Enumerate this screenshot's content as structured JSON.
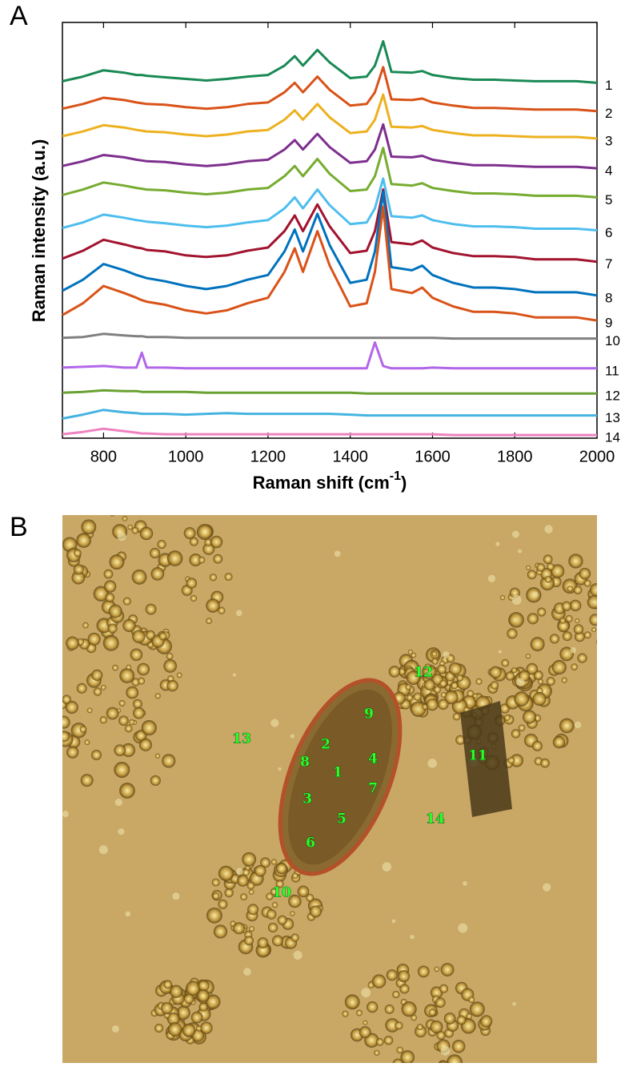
{
  "chart_data": {
    "type": "line",
    "panel_label": "A",
    "y_label": "Raman intensity (a.u.)",
    "x_label": [
      "Raman shift (cm",
      "-1",
      ")"
    ],
    "xlim": [
      700,
      2000
    ],
    "xticks": [
      800,
      1000,
      1200,
      1400,
      1600,
      1800,
      2000
    ],
    "ylim": [
      0,
      530
    ],
    "x": [
      700,
      750,
      800,
      850,
      880,
      893,
      905,
      950,
      1000,
      1050,
      1100,
      1150,
      1200,
      1240,
      1265,
      1285,
      1320,
      1350,
      1400,
      1440,
      1460,
      1480,
      1500,
      1550,
      1575,
      1600,
      1650,
      1700,
      1750,
      1800,
      1850,
      1900,
      1950,
      2000
    ],
    "series": [
      {
        "name": "1",
        "color": "#1a8a55",
        "values": [
          455,
          461,
          469,
          466,
          463,
          463,
          462,
          460,
          458,
          456,
          458,
          461,
          463,
          475,
          487,
          475,
          495,
          479,
          459,
          461,
          475,
          506,
          467,
          466,
          468,
          463,
          459,
          457,
          457,
          456,
          455,
          455,
          455,
          453
        ]
      },
      {
        "name": "2",
        "color": "#d95319",
        "values": [
          420,
          426,
          434,
          431,
          428,
          427,
          426,
          425,
          422,
          420,
          422,
          426,
          428,
          441,
          453,
          441,
          461,
          444,
          424,
          426,
          441,
          473,
          432,
          431,
          433,
          428,
          424,
          421,
          421,
          420,
          419,
          419,
          419,
          417
        ]
      },
      {
        "name": "3",
        "color": "#edb120",
        "values": [
          385,
          391,
          399,
          396,
          393,
          392,
          391,
          390,
          387,
          385,
          387,
          391,
          393,
          406,
          418,
          406,
          426,
          409,
          389,
          391,
          406,
          438,
          397,
          396,
          398,
          393,
          389,
          386,
          386,
          385,
          384,
          384,
          384,
          382
        ]
      },
      {
        "name": "4",
        "color": "#7e2f8e",
        "values": [
          347,
          353,
          361,
          358,
          355,
          354,
          353,
          352,
          349,
          347,
          349,
          353,
          355,
          368,
          380,
          368,
          388,
          371,
          351,
          353,
          368,
          400,
          359,
          358,
          360,
          355,
          351,
          348,
          348,
          347,
          346,
          346,
          346,
          344
        ]
      },
      {
        "name": "5",
        "color": "#77ac30",
        "values": [
          310,
          317,
          326,
          322,
          319,
          318,
          317,
          316,
          313,
          311,
          313,
          317,
          319,
          334,
          347,
          334,
          356,
          337,
          315,
          317,
          334,
          370,
          324,
          322,
          325,
          319,
          315,
          312,
          312,
          311,
          309,
          309,
          309,
          307
        ]
      },
      {
        "name": "6",
        "color": "#4dbeee",
        "values": [
          268,
          275,
          285,
          281,
          278,
          277,
          276,
          274,
          271,
          269,
          271,
          275,
          278,
          293,
          307,
          293,
          317,
          297,
          273,
          275,
          293,
          331,
          283,
          281,
          284,
          278,
          273,
          270,
          270,
          269,
          267,
          267,
          267,
          265
        ]
      },
      {
        "name": "7",
        "color": "#a2142f",
        "values": [
          229,
          239,
          253,
          247,
          243,
          242,
          240,
          238,
          233,
          231,
          233,
          239,
          243,
          264,
          284,
          264,
          298,
          270,
          236,
          239,
          264,
          317,
          250,
          247,
          252,
          243,
          236,
          232,
          232,
          231,
          228,
          228,
          228,
          225
        ]
      },
      {
        "name": "8",
        "color": "#0072bd",
        "values": [
          188,
          202,
          222,
          214,
          208,
          206,
          204,
          200,
          194,
          190,
          194,
          202,
          208,
          238,
          266,
          238,
          286,
          246,
          198,
          202,
          238,
          314,
          218,
          214,
          220,
          208,
          198,
          192,
          192,
          190,
          186,
          186,
          186,
          182
        ]
      },
      {
        "name": "9",
        "color": "#d95319",
        "values": [
          157,
          172,
          194,
          185,
          179,
          176,
          174,
          170,
          163,
          159,
          163,
          172,
          179,
          212,
          242,
          212,
          264,
          220,
          168,
          172,
          212,
          295,
          190,
          185,
          192,
          179,
          168,
          161,
          161,
          159,
          154,
          154,
          154,
          150
        ]
      },
      {
        "name": "10",
        "color": "#808080",
        "values": [
          128,
          129,
          133,
          131,
          130,
          130,
          129,
          129,
          128,
          128,
          128,
          128,
          128,
          128,
          128,
          128,
          128,
          128,
          128,
          128,
          128,
          128,
          128,
          128,
          128,
          128,
          127,
          127,
          127,
          127,
          127,
          127,
          127,
          127
        ]
      },
      {
        "name": "11",
        "color": "#b266e8",
        "values": [
          90,
          91,
          92,
          90,
          90,
          109,
          90,
          90,
          89,
          89,
          89,
          89,
          89,
          89,
          89,
          89,
          89,
          89,
          89,
          89,
          122,
          92,
          89,
          89,
          89,
          90,
          89,
          89,
          89,
          89,
          89,
          89,
          89,
          89
        ]
      },
      {
        "name": "12",
        "color": "#6aa132",
        "values": [
          58,
          59,
          61,
          60,
          60,
          59,
          59,
          59,
          59,
          58,
          58,
          58,
          58,
          58,
          58,
          58,
          58,
          58,
          58,
          57,
          57,
          57,
          57,
          57,
          57,
          57,
          57,
          57,
          57,
          57,
          57,
          57,
          57,
          57
        ]
      },
      {
        "name": "13",
        "color": "#45b3e0",
        "values": [
          25,
          30,
          36,
          33,
          32,
          31,
          31,
          31,
          30,
          31,
          32,
          31,
          31,
          31,
          31,
          31,
          31,
          31,
          30,
          29,
          29,
          29,
          29,
          29,
          29,
          29,
          29,
          29,
          29,
          29,
          29,
          29,
          29,
          29
        ]
      },
      {
        "name": "14",
        "color": "#ee82c0",
        "values": [
          5,
          8,
          12,
          9,
          7,
          6,
          6,
          5,
          5,
          5,
          5,
          5,
          5,
          5,
          5,
          5,
          5,
          5,
          5,
          5,
          5,
          5,
          5,
          5,
          5,
          5,
          4,
          4,
          4,
          4,
          4,
          4,
          4,
          4
        ]
      }
    ]
  },
  "image": {
    "panel_label": "B",
    "labels": [
      "1",
      "2",
      "3",
      "4",
      "5",
      "6",
      "7",
      "8",
      "9",
      "10",
      "11",
      "12",
      "13",
      "14"
    ]
  }
}
